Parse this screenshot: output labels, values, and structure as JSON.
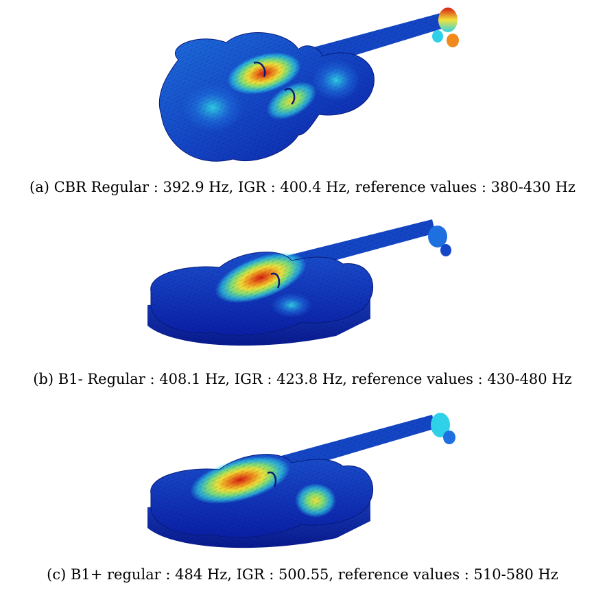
{
  "figure": {
    "panels": [
      {
        "id": "a",
        "caption": "(a) CBR Regular : 392.9 Hz, IGR : 400.4 Hz, reference values : 380-430 Hz"
      },
      {
        "id": "b",
        "caption": "(b) B1- Regular : 408.1 Hz, IGR : 423.8 Hz, reference values : 430-480 Hz"
      },
      {
        "id": "c",
        "caption": "(c) B1+ regular : 484 Hz, IGR : 500.55, reference values : 510-580 Hz"
      }
    ],
    "colormap": [
      "#0a1fa8",
      "#1e6fe0",
      "#2fd1e8",
      "#7fe07a",
      "#f2e23a",
      "#f08a1e",
      "#d61a12"
    ]
  }
}
